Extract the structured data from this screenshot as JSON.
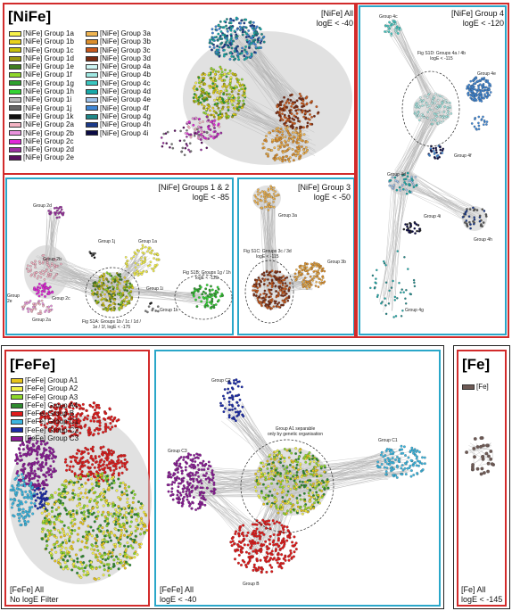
{
  "nife": {
    "title": "[NiFe]",
    "legend_col1": [
      {
        "label": "[NiFe] Group 1a",
        "color": "#f6f24a"
      },
      {
        "label": "[NiFe] Group 1b",
        "color": "#e9d21c"
      },
      {
        "label": "[NiFe] Group 1c",
        "color": "#c9c20c"
      },
      {
        "label": "[NiFe] Group 1d",
        "color": "#9c9a12"
      },
      {
        "label": "[NiFe] Group 1e",
        "color": "#3f7d1f"
      },
      {
        "label": "[NiFe] Group 1f",
        "color": "#8fd62a"
      },
      {
        "label": "[NiFe] Group 1g",
        "color": "#2fa12f"
      },
      {
        "label": "[NiFe] Group 1h",
        "color": "#33d433"
      },
      {
        "label": "[NiFe] Group 1i",
        "color": "#b8b8b8"
      },
      {
        "label": "[NiFe] Group 1j",
        "color": "#666666"
      },
      {
        "label": "[NiFe] Group 1k",
        "color": "#111111"
      },
      {
        "label": "[NiFe] Group 2a",
        "color": "#f3b3c3"
      },
      {
        "label": "[NiFe] Group 2b",
        "color": "#e892dc"
      },
      {
        "label": "[NiFe] Group 2c",
        "color": "#e028d8"
      },
      {
        "label": "[NiFe] Group 2d",
        "color": "#9a2fa0"
      },
      {
        "label": "[NiFe] Group 2e",
        "color": "#5a1060"
      }
    ],
    "legend_col2": [
      {
        "label": "[NiFe] Group 3a",
        "color": "#f0b552"
      },
      {
        "label": "[NiFe] Group 3b",
        "color": "#db8e2b"
      },
      {
        "label": "[NiFe] Group 3c",
        "color": "#c8581b"
      },
      {
        "label": "[NiFe] Group 3d",
        "color": "#7a2a10"
      },
      {
        "label": "[NiFe] Group 4a",
        "color": "#cdf6f4"
      },
      {
        "label": "[NiFe] Group 4b",
        "color": "#9fe8e2"
      },
      {
        "label": "[NiFe] Group 4c",
        "color": "#39c6c0"
      },
      {
        "label": "[NiFe] Group 4d",
        "color": "#16a8a8"
      },
      {
        "label": "[NiFe] Group 4e",
        "color": "#9fc3ea"
      },
      {
        "label": "[NiFe] Group 4f",
        "color": "#3f87d6"
      },
      {
        "label": "[NiFe] Group 4g",
        "color": "#1f8888"
      },
      {
        "label": "[NiFe] Group 4h",
        "color": "#1b3a8a"
      },
      {
        "label": "[NiFe] Group 4i",
        "color": "#0b0b45"
      }
    ],
    "all_label": "[NiFe] All",
    "all_cutoff": "logE < -40",
    "g12_title": "[NiFe] Groups 1 & 2",
    "g12_cutoff": "logE < -85",
    "g3_title": "[NiFe] Group 3",
    "g3_cutoff": "logE < -50",
    "g4_title": "[NiFe] Group 4",
    "g4_cutoff": "logE < -120",
    "g12_labels": {
      "g2d": "Group 2d",
      "g2b": "Group 2b",
      "g2c": "Group 2c",
      "g2e": "Group\n2e",
      "g2a": "Group 2a",
      "g1j": "Group 1j",
      "g1a": "Group 1a",
      "g1i": "Group 1i",
      "g1k": "Group 1k",
      "s1b": "Fig S1B: Groups 1g / 1h\nlogE < -120",
      "s1a": "Fig S1A: Groups 1b / 1c / 1d /\n1e / 1f, logE < -175"
    },
    "g3_labels": {
      "g3a": "Group 3a",
      "g3b": "Group 3b",
      "s1c": "Fig S1C: Groups 3c / 3d\nlogE < -115"
    },
    "g4_labels": {
      "g4c": "Group 4c",
      "s1d": "Fig S1D: Groups 4a / 4b\nlogE < -115",
      "g4e": "Group 4e",
      "g4f": "Group 4f",
      "g4d": "Group 4d",
      "g4i": "Group 4i",
      "g4h": "Group 4h",
      "g4g": "Group 4g"
    }
  },
  "fefe": {
    "title": "[FeFe]",
    "legend": [
      {
        "label": "[FeFe] Group A1",
        "color": "#e8c51a"
      },
      {
        "label": "[FeFe] Group A2",
        "color": "#f2f24a"
      },
      {
        "label": "[FeFe] Group A3",
        "color": "#8ed82a"
      },
      {
        "label": "[FeFe] Group A4",
        "color": "#2e8b2e"
      },
      {
        "label": "[FeFe] Group B",
        "color": "#e01a1a"
      },
      {
        "label": "[FeFe] Group C1",
        "color": "#3ab6e0"
      },
      {
        "label": "[FeFe] Group C2",
        "color": "#1a2aa8"
      },
      {
        "label": "[FeFe] Group C3",
        "color": "#8a1a96"
      }
    ],
    "all_label": "[FeFe] All",
    "all_cutoff": "No logE Filter",
    "filtered_label": "[FeFe] All",
    "filtered_cutoff": "logE < -40",
    "labels": {
      "c2": "Group C2",
      "c3": "Group C3",
      "c1": "Group C1",
      "a1": "Group A1 separable\nonly by genetic organisation",
      "b": "Group B"
    }
  },
  "fe": {
    "title": "[Fe]",
    "legend": [
      {
        "label": "[Fe]",
        "color": "#6e5a55"
      }
    ],
    "all_label": "[Fe] All",
    "all_cutoff": "logE < -145"
  }
}
